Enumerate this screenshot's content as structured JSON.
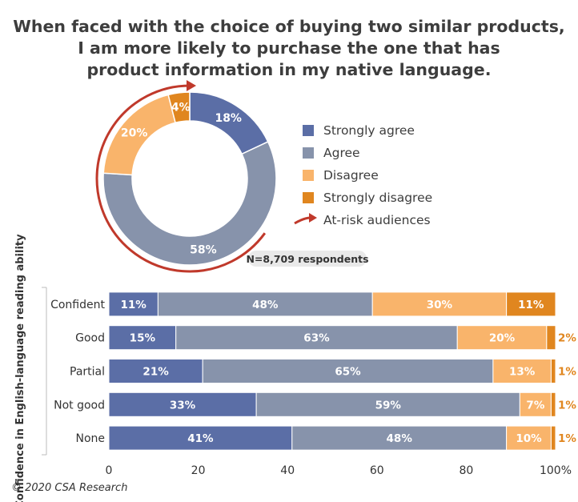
{
  "title_lines": [
    "When faced with the choice of buying two similar products,",
    "I am more likely to purchase the one that has",
    "product information in my native language."
  ],
  "colors": {
    "strongly_agree": "#5b6ea6",
    "agree": "#8793ab",
    "disagree": "#f9b46b",
    "strongly_disagree": "#e0861f",
    "at_risk": "#c0392b"
  },
  "legend": [
    {
      "label": "Strongly agree",
      "color": "#5b6ea6",
      "kind": "swatch"
    },
    {
      "label": "Agree",
      "color": "#8793ab",
      "kind": "swatch"
    },
    {
      "label": "Disagree",
      "color": "#f9b46b",
      "kind": "swatch"
    },
    {
      "label": "Strongly disagree",
      "color": "#e0861f",
      "kind": "swatch"
    },
    {
      "label": "At-risk audiences",
      "color": "#c0392b",
      "kind": "arrow"
    }
  ],
  "respondents": "N=8,709 respondents",
  "copyright": "© 2020 CSA Research",
  "chart_data": [
    {
      "type": "pie",
      "variant": "donut",
      "slices": [
        {
          "name": "Strongly agree",
          "value": 18,
          "label": "18%"
        },
        {
          "name": "Agree",
          "value": 58,
          "label": "58%"
        },
        {
          "name": "Disagree",
          "value": 20,
          "label": "20%"
        },
        {
          "name": "Strongly disagree",
          "value": 4,
          "label": "4%"
        }
      ],
      "at_risk_arc": "Disagree + Strongly disagree + Agree (arrow)"
    },
    {
      "type": "bar",
      "orientation": "horizontal",
      "stacked": true,
      "ylabel": "Confidence in English-language reading ability",
      "categories": [
        "Confident",
        "Good",
        "Partial",
        "Not good",
        "None"
      ],
      "xlim": [
        0,
        100
      ],
      "xticks": [
        "0",
        "20",
        "40",
        "60",
        "80",
        "100%"
      ],
      "xtick_values": [
        0,
        20,
        40,
        60,
        80,
        100
      ],
      "series": [
        {
          "name": "Strongly agree",
          "values": [
            11,
            15,
            21,
            33,
            41
          ],
          "labels": [
            "11%",
            "15%",
            "21%",
            "33%",
            "41%"
          ]
        },
        {
          "name": "Agree",
          "values": [
            48,
            63,
            65,
            59,
            48
          ],
          "labels": [
            "48%",
            "63%",
            "65%",
            "59%",
            "48%"
          ]
        },
        {
          "name": "Disagree",
          "values": [
            30,
            20,
            13,
            7,
            10
          ],
          "labels": [
            "30%",
            "20%",
            "13%",
            "7%",
            "10%"
          ]
        },
        {
          "name": "Strongly disagree",
          "values": [
            11,
            2,
            1,
            1,
            1
          ],
          "labels": [
            "11%",
            "2%",
            "1%",
            "1%",
            "1%"
          ]
        }
      ]
    }
  ]
}
